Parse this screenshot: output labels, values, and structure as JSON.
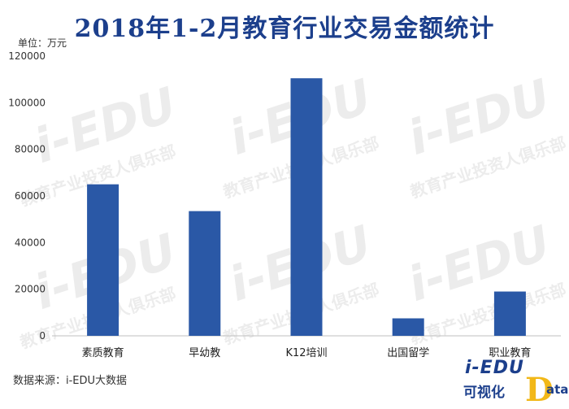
{
  "title": "2018年1-2月教育行业交易金额统计",
  "unit_label": "单位：万元",
  "source": "数据来源：i-EDU大数据",
  "watermark": {
    "main": "i-EDU",
    "sub": "教育产业投资人俱乐部"
  },
  "brand": {
    "top": "i-EDU",
    "bottom": "可视化",
    "d": "D",
    "ata": "ata"
  },
  "colors": {
    "bar": "#2a58a6",
    "title": "#1c3f8c",
    "brand_d": "#f2b818"
  },
  "chart_data": {
    "type": "bar",
    "categories": [
      "素质教育",
      "早幼教",
      "K12培训",
      "出国留学",
      "职业教育"
    ],
    "values": [
      65000,
      53500,
      110500,
      7500,
      19000
    ],
    "ylim": [
      0,
      120000
    ],
    "yticks": [
      0,
      20000,
      40000,
      60000,
      80000,
      100000,
      120000
    ],
    "grid": false,
    "title": "2018年1-2月教育行业交易金额统计",
    "xlabel": "",
    "ylabel": "单位：万元"
  }
}
